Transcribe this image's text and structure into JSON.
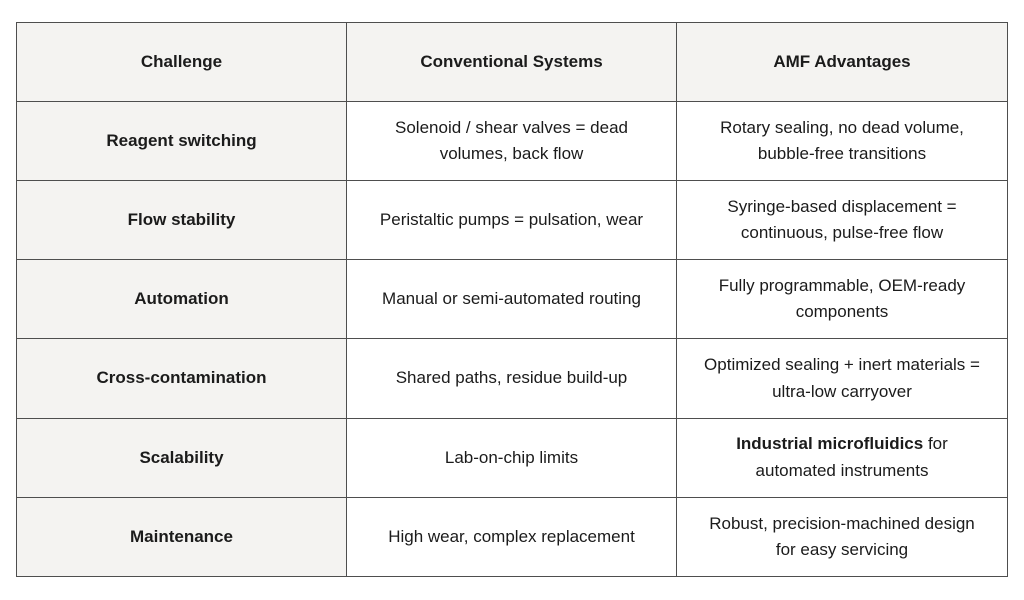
{
  "table": {
    "columns": [
      "Challenge",
      "Conventional Systems",
      "AMF Advantages"
    ],
    "rows": [
      {
        "challenge": "Reagent switching",
        "conventional": "Solenoid / shear valves = dead\nvolumes, back flow",
        "amf_parts": [
          {
            "text": "Rotary sealing, no dead volume,\nbubble-free transitions",
            "bold": false
          }
        ]
      },
      {
        "challenge": "Flow stability",
        "conventional": "Peristaltic pumps = pulsation, wear",
        "amf_parts": [
          {
            "text": "Syringe-based displacement =\ncontinuous, pulse-free flow",
            "bold": false
          }
        ]
      },
      {
        "challenge": "Automation",
        "conventional": "Manual or semi-automated routing",
        "amf_parts": [
          {
            "text": "Fully programmable, OEM-ready\ncomponents",
            "bold": false
          }
        ]
      },
      {
        "challenge": "Cross-contamination",
        "conventional": "Shared paths, residue build-up",
        "amf_parts": [
          {
            "text": "Optimized sealing + inert materials =\nultra-low carryover",
            "bold": false
          }
        ]
      },
      {
        "challenge": "Scalability",
        "conventional": "Lab-on-chip limits",
        "amf_parts": [
          {
            "text": "Industrial microfluidics",
            "bold": true
          },
          {
            "text": " for\nautomated instruments",
            "bold": false
          }
        ]
      },
      {
        "challenge": "Maintenance",
        "conventional": "High wear, complex replacement",
        "amf_parts": [
          {
            "text": "Robust, precision-machined design\nfor easy servicing",
            "bold": false
          }
        ]
      }
    ]
  },
  "colors": {
    "header_bg": "#f4f3f1",
    "cell_bg": "#ffffff",
    "border": "#4e4e4e",
    "text": "#1b1b1b"
  }
}
